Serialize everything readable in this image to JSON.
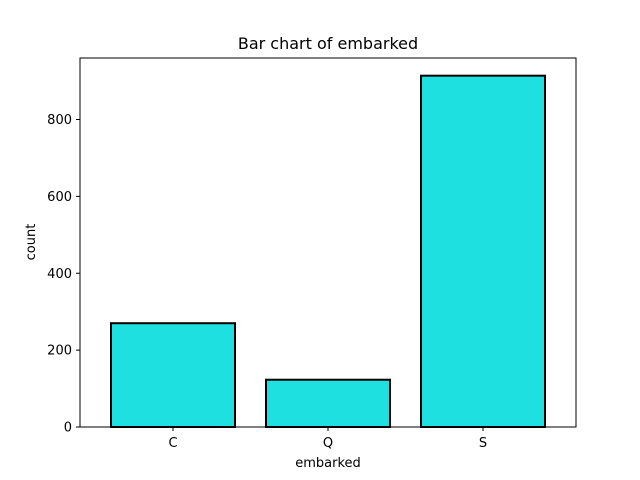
{
  "chart_data": {
    "type": "bar",
    "title": "Bar chart of embarked",
    "xlabel": "embarked",
    "ylabel": "count",
    "categories": [
      "C",
      "Q",
      "S"
    ],
    "values": [
      270,
      123,
      914
    ],
    "ylim": [
      0,
      960
    ],
    "yticks": [
      "0",
      "200",
      "400",
      "600",
      "800"
    ],
    "grid": false,
    "bar_color": "#1fe0e0",
    "edge_color": "#000000"
  }
}
